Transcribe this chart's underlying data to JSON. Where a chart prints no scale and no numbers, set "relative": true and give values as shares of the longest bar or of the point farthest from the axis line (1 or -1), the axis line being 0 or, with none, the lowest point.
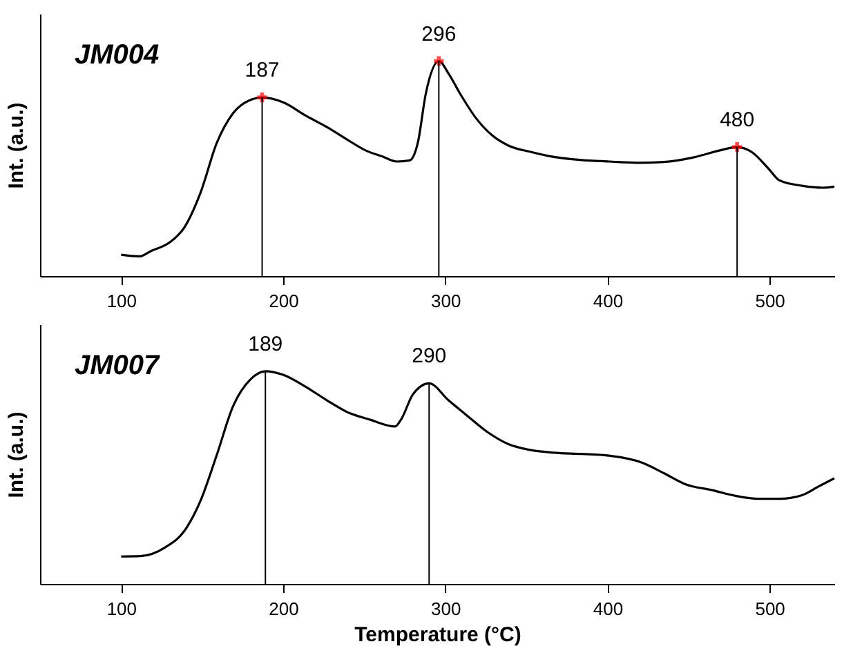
{
  "chart_data": [
    {
      "type": "line",
      "relative": true,
      "title": "JM004",
      "ylabel": "Int. (a.u.)",
      "xlim": [
        50,
        540
      ],
      "xticks": [
        100,
        200,
        300,
        400,
        500
      ],
      "ref_lines": [
        {
          "axis": "x",
          "value": 187,
          "label": "187"
        },
        {
          "axis": "x",
          "value": 296,
          "label": "296"
        },
        {
          "axis": "x",
          "value": 480,
          "label": "480"
        }
      ],
      "series": [
        {
          "color": "#000000",
          "x": [
            100,
            111.6,
            118,
            130,
            139,
            149,
            159,
            169,
            180,
            187,
            200,
            214,
            227,
            239,
            251,
            261,
            270,
            278,
            283,
            288,
            296,
            302,
            309,
            319,
            329,
            339,
            353,
            367,
            384,
            401,
            418,
            435,
            452,
            469,
            480,
            489,
            499,
            506,
            520,
            533,
            540
          ],
          "values": [
            0.099,
            0.092,
            0.115,
            0.157,
            0.226,
            0.388,
            0.619,
            0.757,
            0.82,
            0.831,
            0.808,
            0.746,
            0.693,
            0.637,
            0.584,
            0.557,
            0.533,
            0.538,
            0.619,
            0.85,
            1.0,
            0.942,
            0.85,
            0.734,
            0.654,
            0.607,
            0.577,
            0.554,
            0.54,
            0.533,
            0.527,
            0.531,
            0.55,
            0.584,
            0.6,
            0.577,
            0.503,
            0.446,
            0.42,
            0.411,
            0.416
          ]
        },
        {
          "type": "scatter",
          "marker": "cross",
          "color": "#ff0000",
          "x": [
            187,
            296,
            480
          ],
          "values": [
            0.831,
            1.0,
            0.6
          ]
        }
      ]
    },
    {
      "type": "line",
      "relative": true,
      "title": "JM007",
      "ylabel": "Int. (a.u.)",
      "xlabel": "Temperature (°C)",
      "xlim": [
        50,
        540
      ],
      "xticks": [
        100,
        200,
        300,
        400,
        500
      ],
      "ref_lines": [
        {
          "axis": "x",
          "value": 189,
          "label": "189"
        },
        {
          "axis": "x",
          "value": 290,
          "label": "290"
        }
      ],
      "series": [
        {
          "color": "#000000",
          "x": [
            100,
            112,
            127,
            139,
            149,
            159,
            169,
            180,
            189,
            200,
            214,
            227,
            240,
            254,
            269,
            273,
            280,
            290,
            302,
            312,
            326,
            339,
            353,
            367,
            384,
            401,
            421,
            435,
            448,
            465,
            479,
            493,
            506,
            520,
            530,
            540
          ],
          "values": [
            0.129,
            0.131,
            0.171,
            0.249,
            0.391,
            0.606,
            0.834,
            0.963,
            1.0,
            0.983,
            0.926,
            0.863,
            0.806,
            0.771,
            0.74,
            0.777,
            0.891,
            0.943,
            0.863,
            0.8,
            0.714,
            0.657,
            0.629,
            0.617,
            0.611,
            0.603,
            0.571,
            0.52,
            0.469,
            0.44,
            0.414,
            0.4,
            0.4,
            0.417,
            0.457,
            0.497
          ]
        }
      ]
    }
  ]
}
